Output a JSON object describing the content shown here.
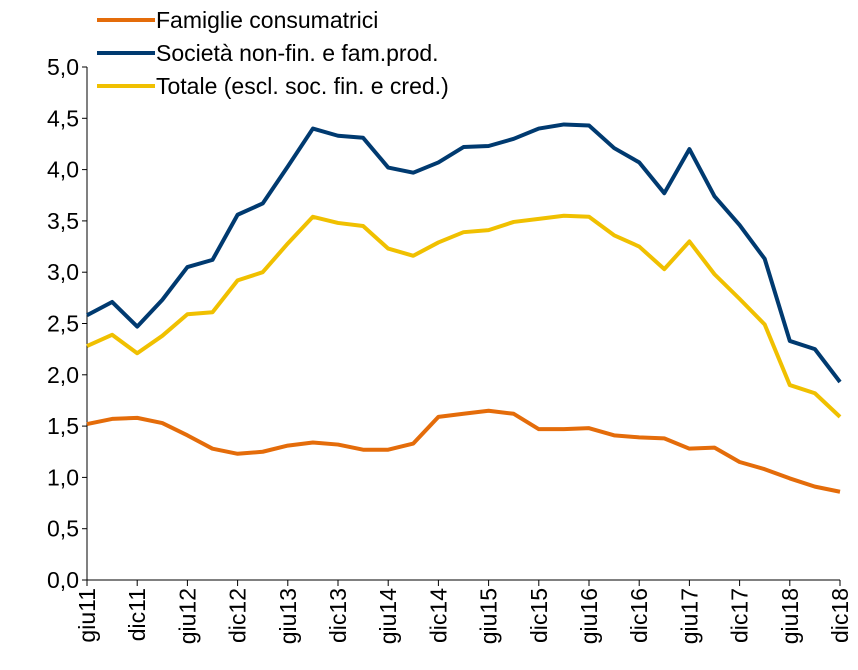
{
  "chart_data": {
    "type": "line",
    "categories": [
      "giu11",
      null,
      "dic11",
      null,
      "giu12",
      null,
      "dic12",
      null,
      "giu13",
      null,
      "dic13",
      null,
      "giu14",
      null,
      "dic14",
      null,
      "giu15",
      null,
      "dic15",
      null,
      "giu16",
      null,
      "dic16",
      null,
      "giu17",
      null,
      "dic17",
      null,
      "giu18",
      null,
      "dic18"
    ],
    "series": [
      {
        "name": "Famiglie consumatrici",
        "color": "#e46c0a",
        "values": [
          1.52,
          1.57,
          1.58,
          1.53,
          1.41,
          1.28,
          1.23,
          1.25,
          1.31,
          1.34,
          1.32,
          1.27,
          1.27,
          1.33,
          1.59,
          1.62,
          1.65,
          1.62,
          1.47,
          1.47,
          1.48,
          1.41,
          1.39,
          1.38,
          1.28,
          1.29,
          1.15,
          1.08,
          0.99,
          0.91,
          0.86
        ]
      },
      {
        "name": "Società non-fin. e fam.prod.",
        "color": "#003a70",
        "values": [
          2.58,
          2.71,
          2.47,
          2.73,
          3.05,
          3.12,
          3.56,
          3.67,
          4.03,
          4.4,
          4.33,
          4.31,
          4.02,
          3.97,
          4.07,
          4.22,
          4.23,
          4.3,
          4.4,
          4.44,
          4.43,
          4.21,
          4.07,
          3.77,
          4.2,
          3.74,
          3.46,
          3.13,
          2.33,
          2.25,
          1.93
        ]
      },
      {
        "name": "Totale (escl. soc. fin. e cred.)",
        "color": "#f0c000",
        "values": [
          2.28,
          2.39,
          2.21,
          2.38,
          2.59,
          2.61,
          2.92,
          3.0,
          3.28,
          3.54,
          3.48,
          3.45,
          3.23,
          3.16,
          3.29,
          3.39,
          3.41,
          3.49,
          3.52,
          3.55,
          3.54,
          3.36,
          3.25,
          3.03,
          3.3,
          2.98,
          2.74,
          2.49,
          1.9,
          1.82,
          1.59
        ]
      }
    ],
    "ylim": [
      0,
      5
    ],
    "yticks": [
      {
        "value": 0,
        "label": "0,0"
      },
      {
        "value": 0.5,
        "label": "0,5"
      },
      {
        "value": 1,
        "label": "1,0"
      },
      {
        "value": 1.5,
        "label": "1,5"
      },
      {
        "value": 2,
        "label": "2,0"
      },
      {
        "value": 2.5,
        "label": "2,5"
      },
      {
        "value": 3,
        "label": "3,0"
      },
      {
        "value": 3.5,
        "label": "3,5"
      },
      {
        "value": 4,
        "label": "4,0"
      },
      {
        "value": 4.5,
        "label": "4,5"
      },
      {
        "value": 5,
        "label": "5,0"
      }
    ],
    "grid": false,
    "legend": "top-left"
  }
}
